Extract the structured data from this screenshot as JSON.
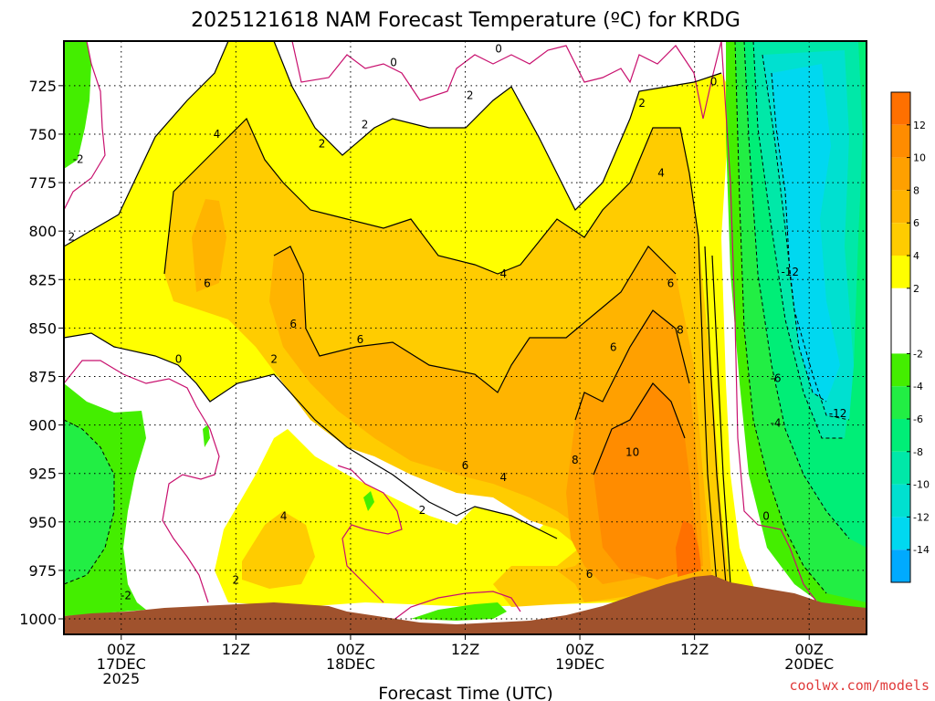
{
  "chart_data": {
    "type": "heatmap",
    "title": "2025121618 NAM Forecast Temperature (ºC) for KRDG",
    "xlabel": "Forecast Time (UTC)",
    "ylabel": "",
    "credit": "coolwx.com/models",
    "x_ticks": [
      {
        "hours": 6,
        "lines": [
          "00Z",
          "17DEC",
          "2025"
        ]
      },
      {
        "hours": 18,
        "lines": [
          "12Z"
        ]
      },
      {
        "hours": 30,
        "lines": [
          "00Z",
          "18DEC"
        ]
      },
      {
        "hours": 42,
        "lines": [
          "12Z"
        ]
      },
      {
        "hours": 54,
        "lines": [
          "00Z",
          "19DEC"
        ]
      },
      {
        "hours": 66,
        "lines": [
          "12Z"
        ]
      },
      {
        "hours": 78,
        "lines": [
          "00Z",
          "20DEC"
        ]
      }
    ],
    "y_ticks": [
      725,
      750,
      775,
      800,
      825,
      850,
      875,
      900,
      925,
      950,
      975,
      1000
    ],
    "y_range": [
      1008,
      702
    ],
    "x_range": [
      0,
      84
    ],
    "colorbar": {
      "ticks": [
        12,
        10,
        8,
        6,
        4,
        2,
        -2,
        -4,
        -6,
        -8,
        -10,
        -12,
        -14
      ],
      "bands": [
        {
          "from": 12,
          "to": 14,
          "color": "#ff7000"
        },
        {
          "from": 10,
          "to": 12,
          "color": "#ff8c00"
        },
        {
          "from": 8,
          "to": 10,
          "color": "#ffa000"
        },
        {
          "from": 6,
          "to": 8,
          "color": "#ffb400"
        },
        {
          "from": 4,
          "to": 6,
          "color": "#ffcc00"
        },
        {
          "from": 2,
          "to": 4,
          "color": "#ffff00"
        },
        {
          "from": -2,
          "to": 2,
          "color": "#ffffff"
        },
        {
          "from": -4,
          "to": -2,
          "color": "#44ee00"
        },
        {
          "from": -6,
          "to": -4,
          "color": "#22ee44"
        },
        {
          "from": -8,
          "to": -6,
          "color": "#00ee77"
        },
        {
          "from": -10,
          "to": -8,
          "color": "#00e8a8"
        },
        {
          "from": -12,
          "to": -10,
          "color": "#00e0d0"
        },
        {
          "from": -14,
          "to": -12,
          "color": "#00d8f0"
        },
        {
          "from": -16,
          "to": -14,
          "color": "#00aaff"
        }
      ]
    },
    "grid": true,
    "contour_labels": [
      {
        "text": "0",
        "hours": 45.5,
        "hpa": 706
      },
      {
        "text": "0",
        "hours": 34.5,
        "hpa": 713
      },
      {
        "text": "0",
        "hours": 68,
        "hpa": 723
      },
      {
        "text": "2",
        "hours": 42.5,
        "hpa": 730
      },
      {
        "text": "2",
        "hours": 31.5,
        "hpa": 745
      },
      {
        "text": "2",
        "hours": 27,
        "hpa": 755
      },
      {
        "text": "2",
        "hours": 60.5,
        "hpa": 734
      },
      {
        "text": "-2",
        "hours": 1.5,
        "hpa": 763
      },
      {
        "text": "4",
        "hours": 16,
        "hpa": 750
      },
      {
        "text": "4",
        "hours": 62.5,
        "hpa": 770
      },
      {
        "text": "2",
        "hours": 0.8,
        "hpa": 803
      },
      {
        "text": "-12",
        "hours": 76,
        "hpa": 821
      },
      {
        "text": "6",
        "hours": 15,
        "hpa": 827
      },
      {
        "text": "4",
        "hours": 46,
        "hpa": 822
      },
      {
        "text": "6",
        "hours": 63.5,
        "hpa": 827
      },
      {
        "text": "6",
        "hours": 24,
        "hpa": 848
      },
      {
        "text": "6",
        "hours": 31,
        "hpa": 856
      },
      {
        "text": "8",
        "hours": 64.5,
        "hpa": 851
      },
      {
        "text": "6",
        "hours": 57.5,
        "hpa": 860
      },
      {
        "text": "0",
        "hours": 12,
        "hpa": 866
      },
      {
        "text": "2",
        "hours": 22,
        "hpa": 866
      },
      {
        "text": "-6",
        "hours": 74.5,
        "hpa": 876
      },
      {
        "text": "-12",
        "hours": 81,
        "hpa": 894
      },
      {
        "text": "-4",
        "hours": 74.5,
        "hpa": 899
      },
      {
        "text": "10",
        "hours": 59.5,
        "hpa": 914
      },
      {
        "text": "8",
        "hours": 53.5,
        "hpa": 918
      },
      {
        "text": "6",
        "hours": 42,
        "hpa": 921
      },
      {
        "text": "4",
        "hours": 46,
        "hpa": 927
      },
      {
        "text": "2",
        "hours": 37.5,
        "hpa": 944
      },
      {
        "text": "4",
        "hours": 23,
        "hpa": 947
      },
      {
        "text": "0",
        "hours": 73.5,
        "hpa": 947
      },
      {
        "text": "6",
        "hours": 55,
        "hpa": 977
      },
      {
        "text": "2",
        "hours": 18,
        "hpa": 980
      },
      {
        "text": "-2",
        "hours": 6.5,
        "hpa": 988
      }
    ]
  }
}
